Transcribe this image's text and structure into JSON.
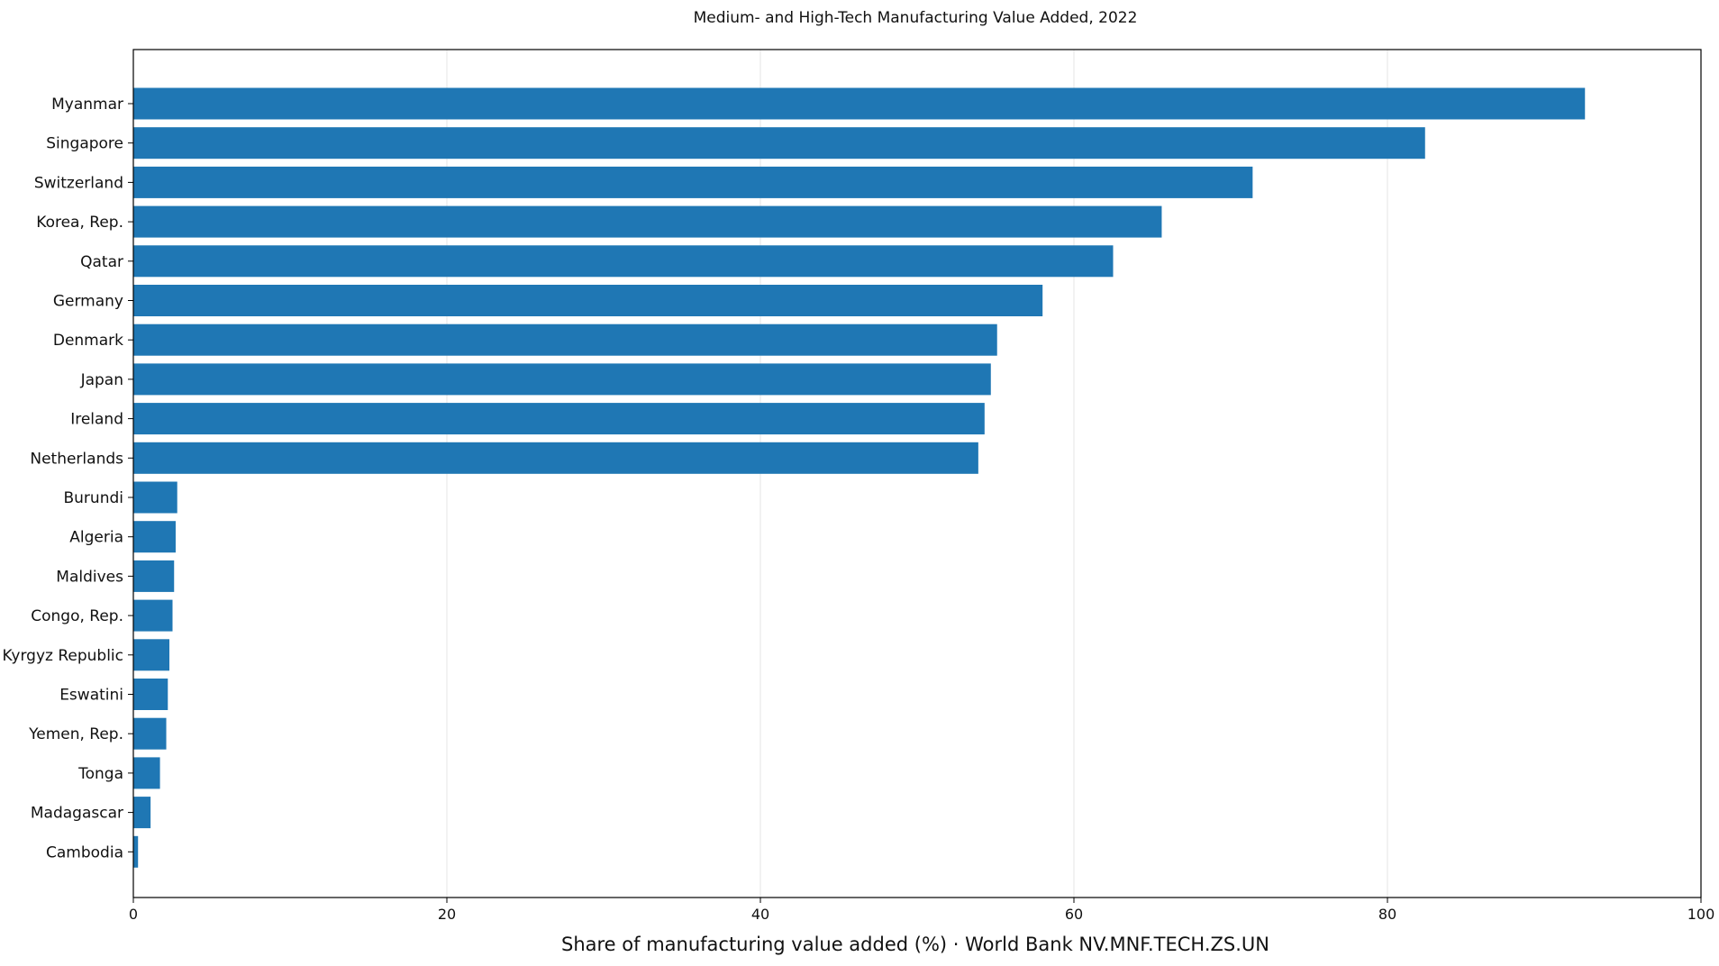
{
  "chart_data": {
    "type": "bar",
    "orientation": "horizontal",
    "title": "Medium- and High-Tech Manufacturing Value Added, 2022",
    "xlabel": "Share of manufacturing value added (%) · World Bank NV.MNF.TECH.ZS.UN",
    "ylabel": "",
    "xlim": [
      0,
      100
    ],
    "xticks": [
      "0",
      "20",
      "40",
      "60",
      "80",
      "100"
    ],
    "grid": "x",
    "bar_color": "#1f77b4",
    "categories": [
      "Myanmar",
      "Singapore",
      "Switzerland",
      "Korea, Rep.",
      "Qatar",
      "Germany",
      "Denmark",
      "Japan",
      "Ireland",
      "Netherlands",
      "Burundi",
      "Algeria",
      "Maldives",
      "Congo, Rep.",
      "Kyrgyz Republic",
      "Eswatini",
      "Yemen, Rep.",
      "Tonga",
      "Madagascar",
      "Cambodia"
    ],
    "values": [
      92.6,
      82.4,
      71.4,
      65.6,
      62.5,
      58.0,
      55.1,
      54.7,
      54.3,
      53.9,
      2.8,
      2.7,
      2.6,
      2.5,
      2.3,
      2.2,
      2.1,
      1.7,
      1.1,
      0.3
    ]
  }
}
